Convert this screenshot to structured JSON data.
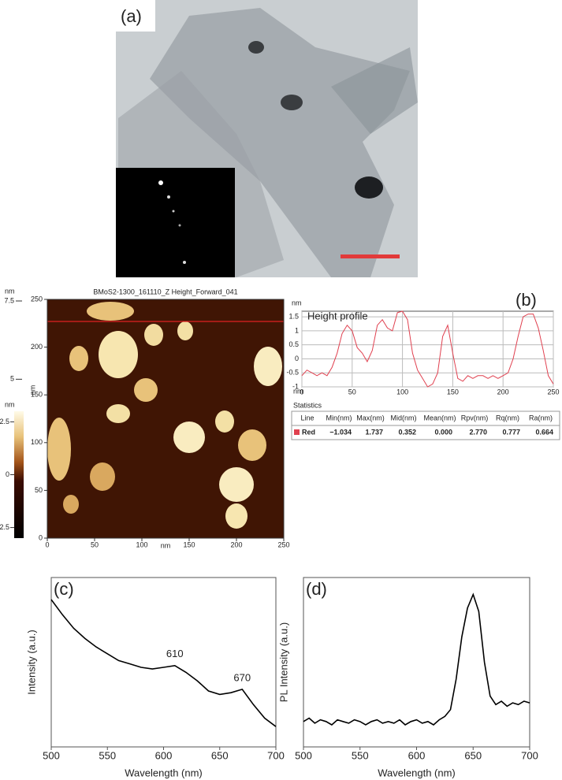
{
  "figure": {
    "a": {
      "label": "(a)"
    },
    "b": {
      "label": "(b)"
    },
    "afm": {
      "title": "BMoS2-1300_161110_Z Height_Forward_041",
      "xlabel": "nm",
      "ylabel": "nm",
      "xlim": [
        0,
        250
      ],
      "xticks": [
        0,
        50,
        100,
        150,
        200,
        250
      ],
      "ylim": [
        0,
        250
      ],
      "yticks": [
        0,
        50,
        100,
        150,
        200,
        250
      ],
      "colorbar": {
        "label": "nm",
        "lim": [
          -3,
          3
        ],
        "ticks": [
          -2.5,
          0,
          2.5
        ]
      },
      "height_scale": {
        "label": "nm",
        "ticks": [
          5,
          7.5
        ]
      }
    },
    "statistics": {
      "title": "Statistics",
      "columns": [
        "Line",
        "Min(nm)",
        "Max(nm)",
        "Mid(nm)",
        "Mean(nm)",
        "Rpv(nm)",
        "Rq(nm)",
        "Ra(nm)"
      ],
      "row": [
        "−1.034",
        "1.737",
        "0.352",
        "0.000",
        "2.770",
        "0.777",
        "0.664"
      ]
    }
  },
  "chart_data": [
    {
      "type": "line",
      "title": "Height profile",
      "xlabel": "nm",
      "ylabel": "nm",
      "x": [
        0,
        5,
        10,
        15,
        20,
        25,
        30,
        35,
        40,
        45,
        50,
        55,
        60,
        65,
        70,
        75,
        80,
        85,
        90,
        95,
        100,
        105,
        110,
        115,
        120,
        125,
        130,
        135,
        140,
        145,
        150,
        155,
        160,
        165,
        170,
        175,
        180,
        185,
        190,
        195,
        200,
        205,
        210,
        215,
        220,
        225,
        230,
        235,
        240,
        245,
        250
      ],
      "series": [
        {
          "name": "Red",
          "color": "#e0404f",
          "values": [
            -0.6,
            -0.4,
            -0.5,
            -0.6,
            -0.5,
            -0.6,
            -0.3,
            0.2,
            0.9,
            1.2,
            1.0,
            0.4,
            0.2,
            -0.1,
            0.3,
            1.2,
            1.4,
            1.1,
            1.0,
            1.65,
            1.7,
            1.4,
            0.2,
            -0.4,
            -0.7,
            -1.0,
            -0.9,
            -0.5,
            0.8,
            1.2,
            0.2,
            -0.7,
            -0.8,
            -0.6,
            -0.7,
            -0.6,
            -0.6,
            -0.7,
            -0.6,
            -0.7,
            -0.6,
            -0.5,
            0.0,
            0.8,
            1.5,
            1.6,
            1.6,
            1.1,
            0.3,
            -0.6,
            -0.9
          ]
        }
      ],
      "xlim": [
        0,
        250
      ],
      "xticks": [
        0,
        50,
        100,
        150,
        200,
        250
      ],
      "ylim": [
        -1,
        1.7
      ],
      "yticks": [
        -1,
        -0.5,
        0,
        0.5,
        1,
        1.5
      ],
      "grid": true
    },
    {
      "type": "line",
      "label": "(c)",
      "xlabel": "Wavelength (nm)",
      "ylabel": "Intensity (a.u.)",
      "color": "#000000",
      "x": [
        500,
        510,
        520,
        530,
        540,
        550,
        560,
        570,
        580,
        590,
        600,
        610,
        620,
        630,
        640,
        650,
        660,
        670,
        680,
        690,
        700
      ],
      "values": [
        0.87,
        0.78,
        0.7,
        0.64,
        0.59,
        0.55,
        0.51,
        0.49,
        0.47,
        0.46,
        0.47,
        0.48,
        0.44,
        0.39,
        0.33,
        0.31,
        0.32,
        0.34,
        0.25,
        0.17,
        0.12
      ],
      "xlim": [
        500,
        700
      ],
      "xticks": [
        500,
        550,
        600,
        650,
        700
      ],
      "ylim": [
        0,
        1
      ],
      "peaks": [
        610,
        670
      ]
    },
    {
      "type": "line",
      "label": "(d)",
      "xlabel": "Wavelength (nm)",
      "ylabel": "PL Intensity (a.u.)",
      "color": "#000000",
      "x": [
        500,
        505,
        510,
        515,
        520,
        525,
        530,
        535,
        540,
        545,
        550,
        555,
        560,
        565,
        570,
        575,
        580,
        585,
        590,
        595,
        600,
        605,
        610,
        615,
        620,
        625,
        630,
        635,
        640,
        645,
        650,
        655,
        660,
        665,
        670,
        675,
        680,
        685,
        690,
        695,
        700
      ],
      "values": [
        0.15,
        0.17,
        0.14,
        0.16,
        0.15,
        0.13,
        0.16,
        0.15,
        0.14,
        0.16,
        0.15,
        0.13,
        0.15,
        0.16,
        0.14,
        0.15,
        0.14,
        0.16,
        0.13,
        0.15,
        0.16,
        0.14,
        0.15,
        0.13,
        0.16,
        0.18,
        0.22,
        0.4,
        0.65,
        0.82,
        0.9,
        0.8,
        0.5,
        0.3,
        0.25,
        0.27,
        0.24,
        0.26,
        0.25,
        0.27,
        0.26
      ],
      "xlim": [
        500,
        700
      ],
      "xticks": [
        500,
        550,
        600,
        650,
        700
      ],
      "ylim": [
        0,
        1
      ]
    }
  ]
}
